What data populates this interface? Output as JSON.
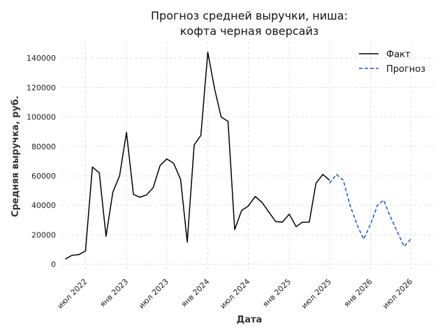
{
  "chart_data": {
    "type": "line",
    "title": "Прогноз средней выручки, ниша:",
    "subtitle": "кофта черная оверсайз",
    "xlabel": "Дата",
    "ylabel": "Средняя выручка, руб.",
    "x_ticks": [
      "2022-07-01",
      "2023-01-01",
      "2023-07-01",
      "2024-01-01",
      "2024-07-01",
      "2025-01-01",
      "2025-07-01",
      "2026-01-01",
      "2026-07-01"
    ],
    "x_tick_labels": [
      "июл 2022",
      "янв 2023",
      "июл 2023",
      "янв 2024",
      "июл 2024",
      "янв 2025",
      "июл 2025",
      "янв 2026",
      "июл 2026"
    ],
    "y_ticks": [
      0,
      20000,
      40000,
      60000,
      80000,
      100000,
      120000,
      140000
    ],
    "y_tick_labels": [
      "0",
      "20000",
      "40000",
      "60000",
      "80000",
      "100000",
      "120000",
      "140000"
    ],
    "xlim": [
      "2022-03-15",
      "2026-10-15"
    ],
    "ylim": [
      -4000,
      151000
    ],
    "grid": true,
    "legend_position": "top-right",
    "series": [
      {
        "name": "Факт",
        "color": "#000000",
        "style": "solid",
        "x": [
          "2022-04-01",
          "2022-05-01",
          "2022-06-01",
          "2022-07-01",
          "2022-08-01",
          "2022-09-01",
          "2022-10-01",
          "2022-11-01",
          "2022-12-01",
          "2023-01-01",
          "2023-02-01",
          "2023-03-01",
          "2023-04-01",
          "2023-05-01",
          "2023-06-01",
          "2023-07-01",
          "2023-08-01",
          "2023-09-01",
          "2023-10-01",
          "2023-11-01",
          "2023-12-01",
          "2024-01-01",
          "2024-02-01",
          "2024-03-01",
          "2024-04-01",
          "2024-05-01",
          "2024-06-01",
          "2024-07-01",
          "2024-08-01",
          "2024-09-01",
          "2024-10-01",
          "2024-11-01",
          "2024-12-01",
          "2025-01-01",
          "2025-02-01",
          "2025-03-01",
          "2025-04-01",
          "2025-05-01",
          "2025-06-01",
          "2025-07-01"
        ],
        "values": [
          3500,
          6000,
          6500,
          9000,
          66000,
          62000,
          19000,
          49000,
          60000,
          89500,
          47500,
          45500,
          47000,
          52000,
          67000,
          71500,
          68500,
          57500,
          15000,
          81000,
          87500,
          144000,
          119000,
          100000,
          97000,
          23500,
          36500,
          39500,
          46000,
          42000,
          35500,
          29000,
          28500,
          34000,
          25500,
          28500,
          28500,
          55000,
          61000,
          57000
        ]
      },
      {
        "name": "Прогноз",
        "color": "#1f4fcc",
        "style": "dashed",
        "x": [
          "2025-07-01",
          "2025-08-01",
          "2025-09-01",
          "2025-10-01",
          "2025-11-01",
          "2025-12-01",
          "2026-01-01",
          "2026-02-01",
          "2026-03-01",
          "2026-04-01",
          "2026-05-01",
          "2026-06-01",
          "2026-07-01"
        ],
        "values": [
          55000,
          61000,
          57000,
          40000,
          27000,
          17000,
          27000,
          40000,
          43500,
          32000,
          22000,
          12000,
          17000
        ]
      }
    ]
  }
}
